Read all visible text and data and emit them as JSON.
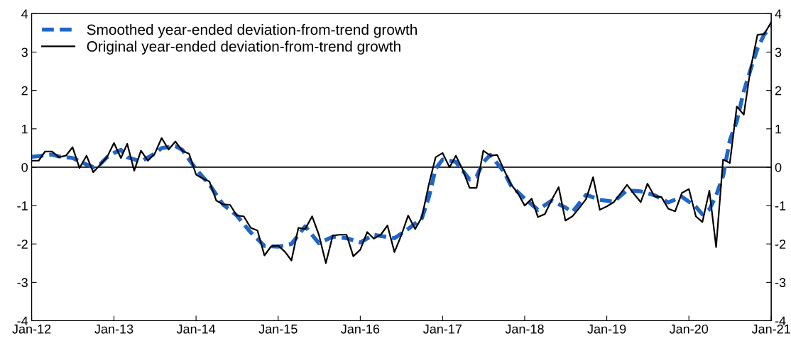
{
  "chart_data": {
    "type": "line",
    "xlim": [
      "2012-01",
      "2021-01"
    ],
    "x": [
      "2012-01",
      "2012-02",
      "2012-03",
      "2012-04",
      "2012-05",
      "2012-06",
      "2012-07",
      "2012-08",
      "2012-09",
      "2012-10",
      "2012-11",
      "2012-12",
      "2013-01",
      "2013-02",
      "2013-03",
      "2013-04",
      "2013-05",
      "2013-06",
      "2013-07",
      "2013-08",
      "2013-09",
      "2013-10",
      "2013-11",
      "2013-12",
      "2014-01",
      "2014-02",
      "2014-03",
      "2014-04",
      "2014-05",
      "2014-06",
      "2014-07",
      "2014-08",
      "2014-09",
      "2014-10",
      "2014-11",
      "2014-12",
      "2015-01",
      "2015-02",
      "2015-03",
      "2015-04",
      "2015-05",
      "2015-06",
      "2015-07",
      "2015-08",
      "2015-09",
      "2015-10",
      "2015-11",
      "2015-12",
      "2016-01",
      "2016-02",
      "2016-03",
      "2016-04",
      "2016-05",
      "2016-06",
      "2016-07",
      "2016-08",
      "2016-09",
      "2016-10",
      "2016-11",
      "2016-12",
      "2017-01",
      "2017-02",
      "2017-03",
      "2017-04",
      "2017-05",
      "2017-06",
      "2017-07",
      "2017-08",
      "2017-09",
      "2017-10",
      "2017-11",
      "2017-12",
      "2018-01",
      "2018-02",
      "2018-03",
      "2018-04",
      "2018-05",
      "2018-06",
      "2018-07",
      "2018-08",
      "2018-09",
      "2018-10",
      "2018-11",
      "2018-12",
      "2019-01",
      "2019-02",
      "2019-03",
      "2019-04",
      "2019-05",
      "2019-06",
      "2019-07",
      "2019-08",
      "2019-09",
      "2019-10",
      "2019-11",
      "2019-12",
      "2020-01",
      "2020-02",
      "2020-03",
      "2020-04",
      "2020-05",
      "2020-06",
      "2020-07",
      "2020-08",
      "2020-09",
      "2020-10",
      "2020-11",
      "2020-12",
      "2021-01"
    ],
    "xticks": [
      {
        "value": "2012-01",
        "label": "Jan-12"
      },
      {
        "value": "2013-01",
        "label": "Jan-13"
      },
      {
        "value": "2014-01",
        "label": "Jan-14"
      },
      {
        "value": "2015-01",
        "label": "Jan-15"
      },
      {
        "value": "2016-01",
        "label": "Jan-16"
      },
      {
        "value": "2017-01",
        "label": "Jan-17"
      },
      {
        "value": "2018-01",
        "label": "Jan-18"
      },
      {
        "value": "2019-01",
        "label": "Jan-19"
      },
      {
        "value": "2020-01",
        "label": "Jan-20"
      },
      {
        "value": "2021-01",
        "label": "Jan-21"
      }
    ],
    "ylim": [
      -4,
      4
    ],
    "yticks": [
      -4,
      -3,
      -2,
      -1,
      0,
      1,
      2,
      3,
      4
    ],
    "y2lim": [
      -4,
      4
    ],
    "y2ticks": [
      -4,
      -3,
      -2,
      -1,
      0,
      1,
      2,
      3,
      4
    ],
    "grid": false,
    "legend": "top left",
    "marker": "none",
    "ref_lines": [
      {
        "axis": "y",
        "value": 0,
        "color": "#000000"
      }
    ],
    "series": [
      {
        "name": "Smoothed year-ended deviation-from-trend growth",
        "color": "#1f66c8",
        "line_style": "dashed",
        "x": [
          "2012-01",
          "2012-04",
          "2012-05",
          "2012-07",
          "2012-09",
          "2012-10",
          "2012-11",
          "2012-12",
          "2013-01",
          "2013-02",
          "2013-03",
          "2013-05",
          "2013-07",
          "2013-08",
          "2013-10",
          "2013-11",
          "2013-12",
          "2014-01",
          "2014-03",
          "2014-05",
          "2014-07",
          "2014-09",
          "2014-11",
          "2015-01",
          "2015-03",
          "2015-05",
          "2015-07",
          "2015-09",
          "2015-11",
          "2016-01",
          "2016-03",
          "2016-06",
          "2016-08",
          "2016-10",
          "2016-11",
          "2016-12",
          "2017-01",
          "2017-03",
          "2017-05",
          "2017-06",
          "2017-07",
          "2017-08",
          "2017-10",
          "2017-11",
          "2018-01",
          "2018-03",
          "2018-05",
          "2018-07",
          "2018-08",
          "2018-10",
          "2018-12",
          "2019-02",
          "2019-04",
          "2019-06",
          "2019-08",
          "2019-10",
          "2019-12",
          "2020-02",
          "2020-03",
          "2020-04",
          "2020-05",
          "2020-06",
          "2020-07",
          "2020-08",
          "2020-09",
          "2020-10",
          "2020-11",
          "2020-12",
          "2021-01"
        ],
        "values": [
          0.27,
          0.33,
          0.28,
          0.24,
          0.07,
          0.0,
          0.08,
          0.26,
          0.37,
          0.45,
          0.26,
          0.15,
          0.35,
          0.5,
          0.55,
          0.45,
          0.2,
          -0.05,
          -0.45,
          -0.97,
          -1.26,
          -1.7,
          -2.05,
          -2.07,
          -2.0,
          -1.54,
          -1.98,
          -1.81,
          -1.85,
          -1.96,
          -1.76,
          -1.85,
          -1.61,
          -1.33,
          -0.78,
          -0.04,
          0.2,
          0.14,
          -0.32,
          -0.24,
          0.13,
          0.32,
          -0.12,
          -0.48,
          -0.82,
          -1.11,
          -0.87,
          -1.05,
          -1.17,
          -0.72,
          -0.85,
          -0.9,
          -0.6,
          -0.63,
          -0.73,
          -0.92,
          -0.77,
          -1.03,
          -1.23,
          -1.1,
          -0.74,
          -0.23,
          0.7,
          1.2,
          1.98,
          2.54,
          3.1,
          3.46,
          3.65
        ]
      },
      {
        "name": "Original year-ended deviation-from-trend growth",
        "color": "#000000",
        "line_style": "solid",
        "values": [
          0.17,
          0.17,
          0.41,
          0.41,
          0.26,
          0.3,
          0.52,
          -0.02,
          0.3,
          -0.13,
          0.07,
          0.26,
          0.63,
          0.24,
          0.61,
          -0.09,
          0.43,
          0.17,
          0.35,
          0.76,
          0.46,
          0.67,
          0.43,
          0.35,
          -0.19,
          -0.3,
          -0.37,
          -0.87,
          -0.97,
          -0.98,
          -1.26,
          -1.28,
          -1.58,
          -1.65,
          -2.3,
          -2.06,
          -2.04,
          -2.21,
          -2.43,
          -1.58,
          -1.61,
          -1.28,
          -1.76,
          -2.5,
          -1.78,
          -1.76,
          -1.76,
          -2.32,
          -2.15,
          -1.69,
          -1.86,
          -1.76,
          -1.52,
          -2.21,
          -1.78,
          -1.26,
          -1.61,
          -1.3,
          -0.45,
          0.26,
          0.37,
          0.0,
          0.3,
          -0.07,
          -0.54,
          -0.54,
          0.43,
          0.3,
          0.32,
          -0.07,
          -0.45,
          -0.67,
          -1.0,
          -0.82,
          -1.3,
          -1.22,
          -0.85,
          -0.52,
          -1.39,
          -1.28,
          -1.06,
          -0.83,
          -0.26,
          -1.11,
          -1.02,
          -0.91,
          -0.7,
          -0.46,
          -0.69,
          -0.91,
          -0.43,
          -0.76,
          -0.78,
          -1.08,
          -1.15,
          -0.67,
          -0.57,
          -1.28,
          -1.43,
          -0.61,
          -2.08,
          0.2,
          0.11,
          1.58,
          1.37,
          2.56,
          3.45,
          3.47,
          3.78
        ]
      }
    ]
  }
}
